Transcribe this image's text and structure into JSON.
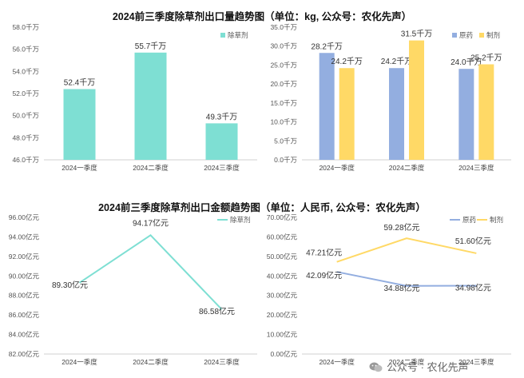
{
  "titles": {
    "top": "2024前三季度除草剂出口量趋势图（单位：kg, 公众号：农化先声）",
    "bottom": "2024前三季度除草剂出口金额趋势图（单位：人民币, 公众号：农化先声）"
  },
  "watermark": {
    "text": "公众号 · 农化先声",
    "icon": "wechat-icon"
  },
  "colors": {
    "teal": "#7edfd3",
    "blue": "#93aee0",
    "yellow": "#ffd966",
    "gridline": "#e4e4e4"
  },
  "chart_data": [
    {
      "type": "bar",
      "categories": [
        "2024一季度",
        "2024二季度",
        "2024三季度"
      ],
      "series": [
        {
          "name": "除草剂",
          "values": [
            52.4,
            55.7,
            49.3
          ],
          "labels": [
            "52.4千万",
            "55.7千万",
            "49.3千万"
          ]
        }
      ],
      "ylim": [
        46.0,
        58.0
      ],
      "yticks": [
        46.0,
        48.0,
        50.0,
        52.0,
        54.0,
        56.0,
        58.0
      ],
      "ytick_labels": [
        "46.0千万",
        "48.0千万",
        "50.0千万",
        "52.0千万",
        "54.0千万",
        "56.0千万",
        "58.0千万"
      ],
      "legend": "top-right",
      "grid": false
    },
    {
      "type": "bar",
      "categories": [
        "2024一季度",
        "2024二季度",
        "2024三季度"
      ],
      "series": [
        {
          "name": "原药",
          "values": [
            28.2,
            24.2,
            24.0
          ],
          "labels": [
            "28.2千万",
            "24.2千万",
            "24.0千万"
          ]
        },
        {
          "name": "制剂",
          "values": [
            24.2,
            31.5,
            25.2
          ],
          "labels": [
            "24.2千万",
            "31.5千万",
            "25.2千万"
          ]
        }
      ],
      "ylim": [
        0.0,
        35.0
      ],
      "yticks": [
        0.0,
        5.0,
        10.0,
        15.0,
        20.0,
        25.0,
        30.0,
        35.0
      ],
      "ytick_labels": [
        "0.0千万",
        "5.0千万",
        "10.0千万",
        "15.0千万",
        "20.0千万",
        "25.0千万",
        "30.0千万",
        "35.0千万"
      ],
      "legend": "top-right",
      "grid": false
    },
    {
      "type": "line",
      "categories": [
        "2024一季度",
        "2024二季度",
        "2024三季度"
      ],
      "series": [
        {
          "name": "除草剂",
          "values": [
            89.3,
            94.17,
            86.58
          ],
          "labels": [
            "89.30亿元",
            "94.17亿元",
            "86.58亿元"
          ]
        }
      ],
      "ylim": [
        82.0,
        96.0
      ],
      "yticks": [
        82.0,
        84.0,
        86.0,
        88.0,
        90.0,
        92.0,
        94.0,
        96.0
      ],
      "ytick_labels": [
        "82.00亿元",
        "84.00亿元",
        "86.00亿元",
        "88.00亿元",
        "90.00亿元",
        "92.00亿元",
        "94.00亿元",
        "96.00亿元"
      ],
      "legend": "top-right",
      "grid": false
    },
    {
      "type": "line",
      "categories": [
        "2024一季度",
        "2024二季度",
        "2024三季度"
      ],
      "series": [
        {
          "name": "原药",
          "values": [
            42.09,
            34.88,
            34.98
          ],
          "labels": [
            "42.09亿元",
            "34.88亿元",
            "34.98亿元"
          ]
        },
        {
          "name": "制剂",
          "values": [
            47.21,
            59.28,
            51.6
          ],
          "labels": [
            "47.21亿元",
            "59.28亿元",
            "51.60亿元"
          ]
        }
      ],
      "ylim": [
        0.0,
        70.0
      ],
      "yticks": [
        0.0,
        10.0,
        20.0,
        30.0,
        40.0,
        50.0,
        60.0,
        70.0
      ],
      "ytick_labels": [
        "0.00亿元",
        "10.00亿元",
        "20.00亿元",
        "30.00亿元",
        "40.00亿元",
        "50.00亿元",
        "60.00亿元",
        "70.00亿元"
      ],
      "legend": "top-right",
      "grid": false
    }
  ]
}
